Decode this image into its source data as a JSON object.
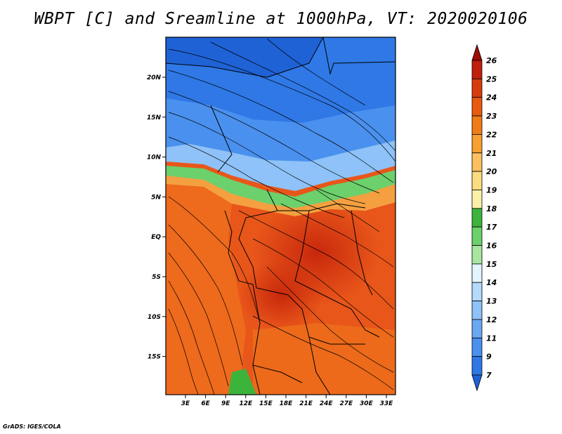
{
  "title": "WBPT [C] and Sreamline at 1000hPa, VT: 2020020106",
  "credit": "GrADS: IGES/COLA",
  "lat_ticks": [
    "20N",
    "15N",
    "10N",
    "5N",
    "EQ",
    "5S",
    "10S",
    "15S"
  ],
  "lon_ticks": [
    "3E",
    "6E",
    "9E",
    "12E",
    "15E",
    "18E",
    "21E",
    "24E",
    "27E",
    "30E",
    "33E"
  ],
  "colorbar": {
    "labels": [
      "7",
      "9",
      "11",
      "12",
      "13",
      "14",
      "15",
      "16",
      "17",
      "18",
      "19",
      "20",
      "21",
      "22",
      "23",
      "24",
      "25",
      "26"
    ],
    "colors": [
      "#1f62d6",
      "#2f78e6",
      "#4a90ee",
      "#6aa8f4",
      "#8ec2f8",
      "#b4dafc",
      "#e2f4fc",
      "#a8e6a0",
      "#6cd06c",
      "#3cb43c",
      "#fcf0a8",
      "#fcdc80",
      "#fcc060",
      "#f8a030",
      "#f07c18",
      "#e85a10",
      "#d83c0c",
      "#c0200c",
      "#a00c08"
    ]
  }
}
